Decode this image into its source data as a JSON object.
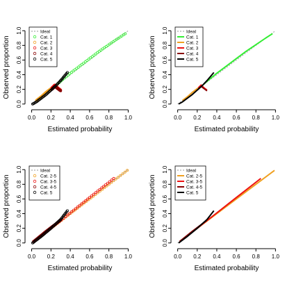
{
  "chart_data": [
    {
      "type": "scatter",
      "xlabel": "Estimated probability",
      "ylabel": "Observed proportion",
      "xlim": [
        0,
        1
      ],
      "ylim": [
        0,
        1
      ],
      "xticks": [
        "0.0",
        "0.2",
        "0.4",
        "0.6",
        "0.8",
        "1.0"
      ],
      "yticks": [
        "0.0",
        "0.2",
        "0.4",
        "0.6",
        "0.8",
        "1.0"
      ],
      "legend_position": "top-left",
      "legend": [
        {
          "label": "Ideal",
          "color": "#aaaaaa",
          "style": "dotted-line"
        },
        {
          "label": "Cat. 1",
          "color": "#33ee33",
          "style": "open-circle"
        },
        {
          "label": "Cat. 2",
          "color": "#f0a020",
          "style": "open-circle"
        },
        {
          "label": "Cat. 3",
          "color": "#ee1111",
          "style": "open-circle"
        },
        {
          "label": "Cat. 4",
          "color": "#880000",
          "style": "open-circle"
        },
        {
          "label": "Cat. 5",
          "color": "#000000",
          "style": "open-circle"
        }
      ],
      "series": [
        {
          "legend_index": 1,
          "color": "#33ee33",
          "x": [
            0.25,
            0.3,
            0.4,
            0.5,
            0.6,
            0.7,
            0.8,
            0.9,
            0.97
          ],
          "y": [
            0.25,
            0.31,
            0.42,
            0.52,
            0.62,
            0.72,
            0.81,
            0.9,
            0.96
          ]
        },
        {
          "legend_index": 2,
          "color": "#f0a020",
          "x": [
            0.05,
            0.1,
            0.15,
            0.2,
            0.25
          ],
          "y": [
            0.05,
            0.1,
            0.16,
            0.21,
            0.25
          ]
        },
        {
          "legend_index": 3,
          "color": "#ee1111",
          "x": [
            0.21,
            0.24,
            0.27,
            0.3
          ],
          "y": [
            0.22,
            0.26,
            0.22,
            0.19
          ]
        },
        {
          "legend_index": 4,
          "color": "#880000",
          "x": [
            0.21,
            0.24,
            0.27,
            0.3
          ],
          "y": [
            0.2,
            0.24,
            0.21,
            0.18
          ]
        },
        {
          "legend_index": 5,
          "color": "#000000",
          "x": [
            0.01,
            0.05,
            0.1,
            0.15,
            0.2,
            0.25,
            0.3,
            0.37
          ],
          "y": [
            0.0,
            0.03,
            0.08,
            0.13,
            0.19,
            0.25,
            0.32,
            0.43
          ]
        }
      ]
    },
    {
      "type": "line",
      "xlabel": "Estimated probability",
      "ylabel": "Observed proportion",
      "xlim": [
        0,
        1
      ],
      "ylim": [
        0,
        1
      ],
      "xticks": [
        "0.0",
        "0.2",
        "0.4",
        "0.6",
        "0.8",
        "1.0"
      ],
      "yticks": [
        "0.0",
        "0.2",
        "0.4",
        "0.6",
        "0.8",
        "1.0"
      ],
      "legend_position": "top-left",
      "legend": [
        {
          "label": "Ideal",
          "color": "#aaaaaa",
          "style": "dotted-line"
        },
        {
          "label": "Cat. 1",
          "color": "#33ee33",
          "style": "line"
        },
        {
          "label": "Cat. 2",
          "color": "#f0a020",
          "style": "line"
        },
        {
          "label": "Cat. 3",
          "color": "#ee1111",
          "style": "line"
        },
        {
          "label": "Cat. 4",
          "color": "#880000",
          "style": "line"
        },
        {
          "label": "Cat. 5",
          "color": "#000000",
          "style": "line"
        }
      ],
      "series": [
        {
          "legend_index": 1,
          "color": "#33ee33",
          "x": [
            0.25,
            0.3,
            0.4,
            0.5,
            0.6,
            0.7,
            0.8,
            0.9,
            0.97
          ],
          "y": [
            0.25,
            0.31,
            0.42,
            0.52,
            0.62,
            0.72,
            0.81,
            0.9,
            0.96
          ]
        },
        {
          "legend_index": 2,
          "color": "#f0a020",
          "x": [
            0.05,
            0.1,
            0.15,
            0.2,
            0.25
          ],
          "y": [
            0.05,
            0.1,
            0.16,
            0.21,
            0.25
          ]
        },
        {
          "legend_index": 3,
          "color": "#ee1111",
          "x": [
            0.21,
            0.24,
            0.27,
            0.3
          ],
          "y": [
            0.22,
            0.26,
            0.22,
            0.19
          ]
        },
        {
          "legend_index": 4,
          "color": "#880000",
          "x": [
            0.21,
            0.24,
            0.27,
            0.3
          ],
          "y": [
            0.2,
            0.24,
            0.21,
            0.18
          ]
        },
        {
          "legend_index": 5,
          "color": "#000000",
          "x": [
            0.01,
            0.05,
            0.1,
            0.15,
            0.2,
            0.25,
            0.3,
            0.37
          ],
          "y": [
            0.0,
            0.03,
            0.08,
            0.13,
            0.19,
            0.25,
            0.32,
            0.43
          ]
        }
      ]
    },
    {
      "type": "scatter",
      "xlabel": "Estimated probability",
      "ylabel": "Observed proportion",
      "xlim": [
        0,
        1
      ],
      "ylim": [
        0,
        1
      ],
      "xticks": [
        "0.0",
        "0.2",
        "0.4",
        "0.6",
        "0.8",
        "1.0"
      ],
      "yticks": [
        "0.0",
        "0.2",
        "0.4",
        "0.6",
        "0.8",
        "1.0"
      ],
      "legend_position": "top-left",
      "legend": [
        {
          "label": "Ideal",
          "color": "#aaaaaa",
          "style": "dotted-line"
        },
        {
          "label": "Cat. 2-5",
          "color": "#f0a020",
          "style": "open-circle"
        },
        {
          "label": "Cat. 3-5",
          "color": "#ee1111",
          "style": "open-circle"
        },
        {
          "label": "Cat. 4-5",
          "color": "#880000",
          "style": "open-circle"
        },
        {
          "label": "Cat. 5",
          "color": "#000000",
          "style": "open-circle"
        }
      ],
      "series": [
        {
          "legend_index": 1,
          "color": "#f0a020",
          "x": [
            0.05,
            0.2,
            0.4,
            0.6,
            0.8,
            0.99
          ],
          "y": [
            0.05,
            0.2,
            0.4,
            0.6,
            0.8,
            0.99
          ]
        },
        {
          "legend_index": 2,
          "color": "#ee1111",
          "x": [
            0.02,
            0.2,
            0.4,
            0.6,
            0.85
          ],
          "y": [
            0.02,
            0.2,
            0.41,
            0.62,
            0.88
          ]
        },
        {
          "legend_index": 3,
          "color": "#880000",
          "x": [
            0.02,
            0.15,
            0.3
          ],
          "y": [
            0.02,
            0.16,
            0.31
          ]
        },
        {
          "legend_index": 4,
          "color": "#000000",
          "x": [
            0.01,
            0.1,
            0.2,
            0.3,
            0.37
          ],
          "y": [
            0.0,
            0.09,
            0.2,
            0.32,
            0.44
          ]
        }
      ]
    },
    {
      "type": "line",
      "xlabel": "Estimated probability",
      "ylabel": "Observed proportion",
      "xlim": [
        0,
        1
      ],
      "ylim": [
        0,
        1
      ],
      "xticks": [
        "0.0",
        "0.2",
        "0.4",
        "0.6",
        "0.8",
        "1.0"
      ],
      "yticks": [
        "0.0",
        "0.2",
        "0.4",
        "0.6",
        "0.8",
        "1.0"
      ],
      "legend_position": "top-left",
      "legend": [
        {
          "label": "Ideal",
          "color": "#aaaaaa",
          "style": "dotted-line"
        },
        {
          "label": "Cat. 2-5",
          "color": "#f0a020",
          "style": "line"
        },
        {
          "label": "Cat. 3-5",
          "color": "#ee1111",
          "style": "line"
        },
        {
          "label": "Cat. 4-5",
          "color": "#880000",
          "style": "line"
        },
        {
          "label": "Cat. 5",
          "color": "#000000",
          "style": "line"
        }
      ],
      "series": [
        {
          "legend_index": 1,
          "color": "#f0a020",
          "x": [
            0.05,
            0.2,
            0.4,
            0.6,
            0.8,
            0.99
          ],
          "y": [
            0.05,
            0.2,
            0.4,
            0.6,
            0.8,
            0.99
          ]
        },
        {
          "legend_index": 2,
          "color": "#ee1111",
          "x": [
            0.02,
            0.2,
            0.4,
            0.6,
            0.85
          ],
          "y": [
            0.02,
            0.2,
            0.41,
            0.62,
            0.88
          ]
        },
        {
          "legend_index": 3,
          "color": "#880000",
          "x": [
            0.02,
            0.15,
            0.3
          ],
          "y": [
            0.02,
            0.16,
            0.31
          ]
        },
        {
          "legend_index": 4,
          "color": "#000000",
          "x": [
            0.01,
            0.1,
            0.2,
            0.3,
            0.37
          ],
          "y": [
            0.0,
            0.09,
            0.2,
            0.32,
            0.44
          ]
        }
      ]
    }
  ]
}
